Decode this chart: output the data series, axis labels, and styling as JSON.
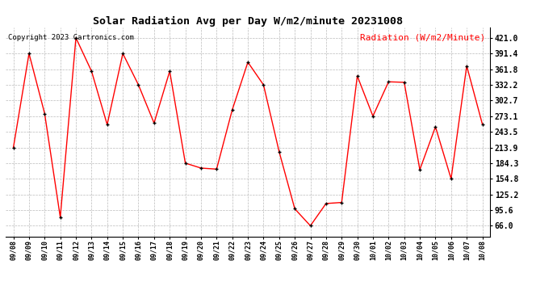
{
  "title": "Solar Radiation Avg per Day W/m2/minute 20231008",
  "copyright_text": "Copyright 2023 Cartronics.com",
  "legend_label": "Radiation (W/m2/Minute)",
  "dates": [
    "09/08",
    "09/09",
    "09/10",
    "09/11",
    "09/12",
    "09/13",
    "09/14",
    "09/15",
    "09/16",
    "09/17",
    "09/18",
    "09/19",
    "09/20",
    "09/21",
    "09/22",
    "09/23",
    "09/24",
    "09/25",
    "09/26",
    "09/27",
    "09/28",
    "09/29",
    "09/30",
    "10/01",
    "10/02",
    "10/03",
    "10/04",
    "10/05",
    "10/06",
    "10/07",
    "10/08"
  ],
  "values": [
    213.9,
    391.4,
    278.0,
    82.0,
    421.0,
    358.0,
    257.0,
    391.4,
    332.2,
    260.0,
    358.0,
    184.3,
    175.0,
    173.0,
    285.0,
    375.0,
    332.2,
    206.0,
    98.0,
    66.0,
    108.0,
    110.0,
    349.0,
    273.1,
    338.0,
    337.0,
    172.0,
    253.0,
    154.8,
    368.0,
    258.0
  ],
  "line_color": "red",
  "marker_color": "black",
  "background_color": "#ffffff",
  "grid_color": "#aaaaaa",
  "title_fontsize": 9.5,
  "copyright_fontsize": 6.5,
  "legend_fontsize": 8,
  "ytick_fontsize": 7,
  "xtick_fontsize": 6,
  "yticks": [
    66.0,
    95.6,
    125.2,
    154.8,
    184.3,
    213.9,
    243.5,
    273.1,
    302.7,
    332.2,
    361.8,
    391.4,
    421.0
  ],
  "ymin": 46.0,
  "ymax": 441.0
}
